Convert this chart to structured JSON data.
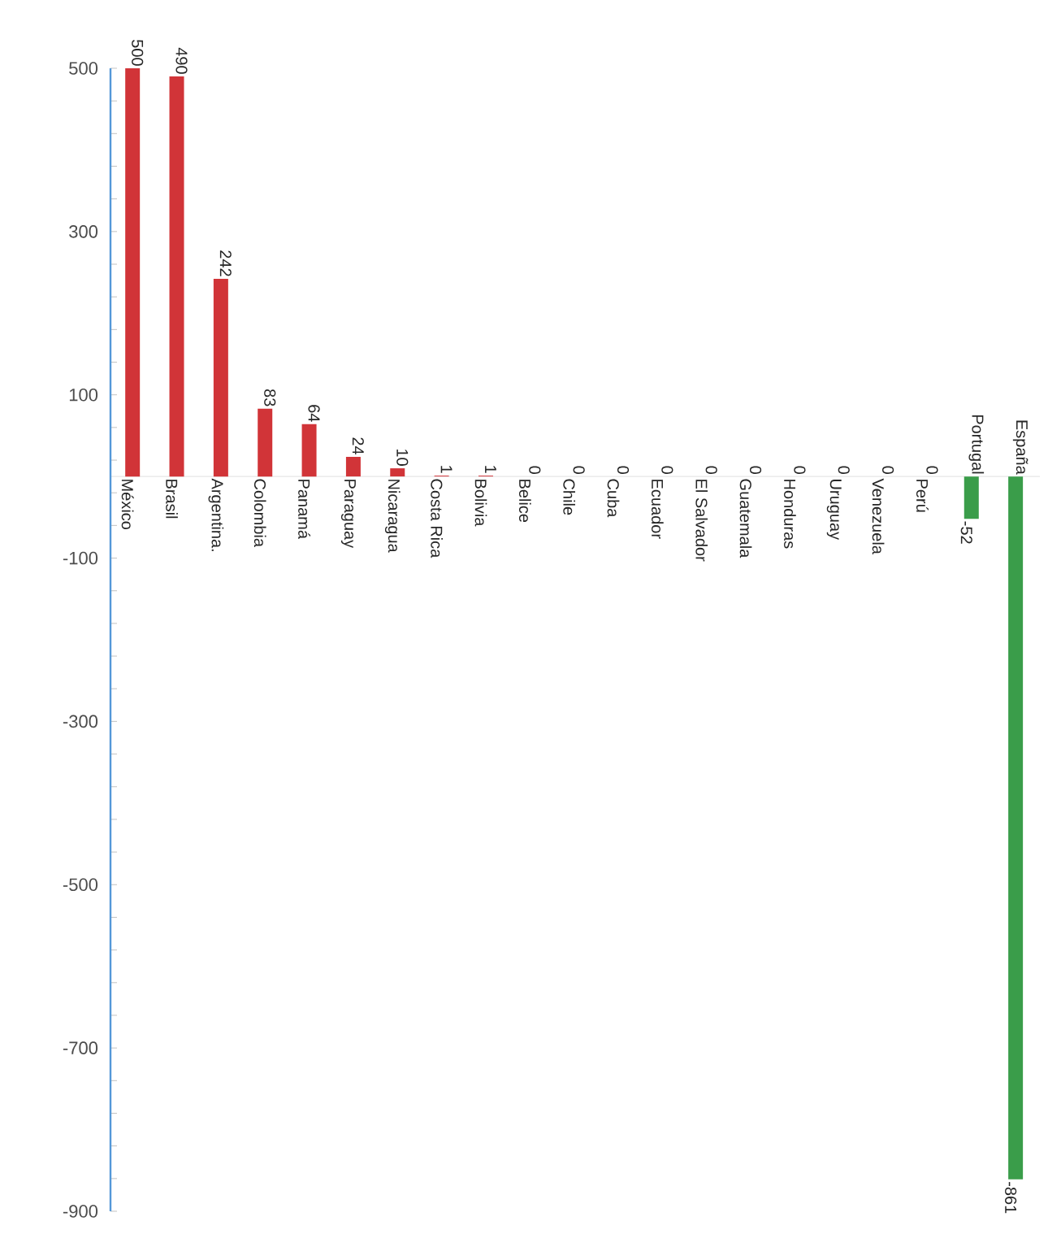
{
  "chart_data": {
    "type": "bar",
    "categories": [
      "México",
      "Brasil",
      "Argentina.",
      "Colombia",
      "Panamá",
      "Paraguay",
      "Nicaragua",
      "Costa Rica",
      "Bolivia",
      "Belice",
      "Chile",
      "Cuba",
      "Ecuador",
      "El Salvador",
      "Guatemala",
      "Honduras",
      "Uruguay",
      "Venezuela",
      "Perú",
      "Portugal",
      "España"
    ],
    "values": [
      500,
      490,
      242,
      83,
      64,
      24,
      10,
      1,
      1,
      0,
      0,
      0,
      0,
      0,
      0,
      0,
      0,
      0,
      0,
      -52,
      -861
    ],
    "colors": [
      "#d13438",
      "#d13438",
      "#d13438",
      "#d13438",
      "#d13438",
      "#d13438",
      "#d13438",
      "#d13438",
      "#d13438",
      "#d13438",
      "#d13438",
      "#d13438",
      "#d13438",
      "#d13438",
      "#d13438",
      "#d13438",
      "#d13438",
      "#d13438",
      "#d13438",
      "#3a9d4a",
      "#3a9d4a"
    ],
    "ylim": [
      -900,
      500
    ],
    "yticks": [
      -900,
      -700,
      -500,
      -300,
      -100,
      100,
      300,
      500
    ],
    "data_labels": true,
    "grid": false
  }
}
